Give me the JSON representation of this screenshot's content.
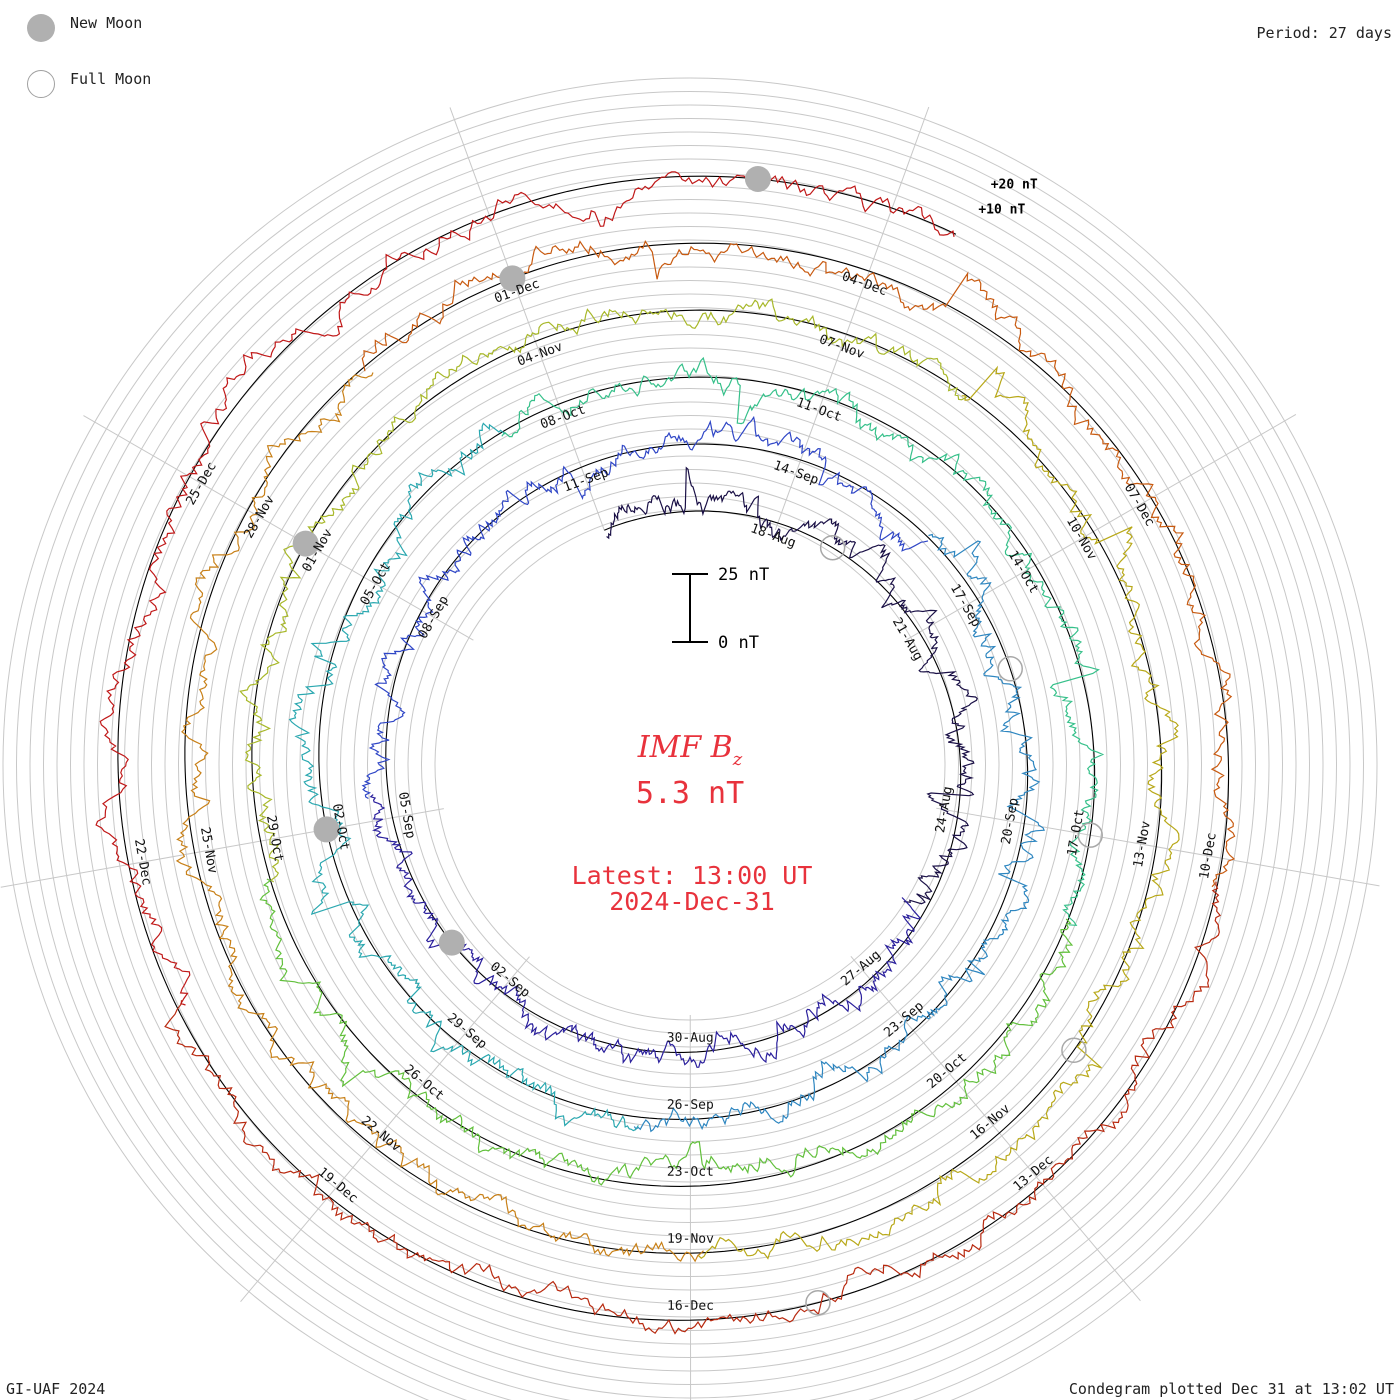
{
  "legend": {
    "new_moon_label": "New Moon",
    "full_moon_label": "Full Moon"
  },
  "period_label": "Period: 27 days",
  "footer_left": "GI-UAF 2024",
  "footer_right": "Condegram plotted Dec 31 at 13:02 UT",
  "center": {
    "quantity": "IMF B",
    "subscript": "z",
    "value": "5.3 nT",
    "latest_line1": "Latest: 13:00 UT",
    "latest_line2": "2024-Dec-31",
    "text_color": "#e8323c"
  },
  "chart_data": {
    "type": "line",
    "subtype": "spiral condegram",
    "quantity": "IMF Bz",
    "units": "nT",
    "period_days": 27,
    "scale_bar": {
      "top_label": "25 nT",
      "bottom_label": "0 nT",
      "span_nT": 25
    },
    "ring_reference_labels": [
      "+20 nT",
      "+10 nT"
    ],
    "latest_value_nT": 5.3,
    "latest_time": "2024-Dec-31 13:00 UT",
    "rotations": [
      {
        "start": "2024-08-15",
        "color": "#1a1046"
      },
      {
        "start": "2024-09-11",
        "color": "#2a1f9c"
      },
      {
        "start": "2024-10-08",
        "color": "#2f46c6"
      },
      {
        "start": "2024-11-04",
        "color": "#2ba8b0"
      },
      {
        "start": "2024-12-01",
        "color": "#62c03c"
      },
      {
        "start": "2024-12-28",
        "color": "#b8a818"
      }
    ],
    "spiral_color_sequence": [
      "#1a1046",
      "#2a1f9c",
      "#2f46c6",
      "#2e86c0",
      "#2ba8b0",
      "#36c08a",
      "#62c03c",
      "#a8b82a",
      "#b8a818",
      "#c88018",
      "#c85a10",
      "#b82a10",
      "#c01818"
    ],
    "date_labels": [
      {
        "text": "18-Aug",
        "day": 3
      },
      {
        "text": "21-Aug",
        "day": 6
      },
      {
        "text": "24-Aug",
        "day": 9
      },
      {
        "text": "27-Aug",
        "day": 12
      },
      {
        "text": "30-Aug",
        "day": 15
      },
      {
        "text": "02-Sep",
        "day": 18
      },
      {
        "text": "05-Sep",
        "day": 21
      },
      {
        "text": "08-Sep",
        "day": 24
      },
      {
        "text": "11-Sep",
        "day": 27
      },
      {
        "text": "14-Sep",
        "day": 30
      },
      {
        "text": "17-Sep",
        "day": 33
      },
      {
        "text": "20-Sep",
        "day": 36
      },
      {
        "text": "23-Sep",
        "day": 39
      },
      {
        "text": "26-Sep",
        "day": 42
      },
      {
        "text": "29-Sep",
        "day": 45
      },
      {
        "text": "02-Oct",
        "day": 48
      },
      {
        "text": "05-Oct",
        "day": 51
      },
      {
        "text": "08-Oct",
        "day": 54
      },
      {
        "text": "11-Oct",
        "day": 57
      },
      {
        "text": "14-Oct",
        "day": 60
      },
      {
        "text": "17-Oct",
        "day": 63
      },
      {
        "text": "20-Oct",
        "day": 66
      },
      {
        "text": "23-Oct",
        "day": 69
      },
      {
        "text": "26-Oct",
        "day": 72
      },
      {
        "text": "29-Oct",
        "day": 75
      },
      {
        "text": "01-Nov",
        "day": 78
      },
      {
        "text": "04-Nov",
        "day": 81
      },
      {
        "text": "07-Nov",
        "day": 84
      },
      {
        "text": "10-Nov",
        "day": 87
      },
      {
        "text": "13-Nov",
        "day": 90
      },
      {
        "text": "16-Nov",
        "day": 93
      },
      {
        "text": "19-Nov",
        "day": 96
      },
      {
        "text": "22-Nov",
        "day": 99
      },
      {
        "text": "25-Nov",
        "day": 102
      },
      {
        "text": "28-Nov",
        "day": 105
      },
      {
        "text": "01-Dec",
        "day": 108
      },
      {
        "text": "04-Dec",
        "day": 111
      },
      {
        "text": "07-Dec",
        "day": 114
      },
      {
        "text": "10-Dec",
        "day": 117
      },
      {
        "text": "13-Dec",
        "day": 120
      },
      {
        "text": "16-Dec",
        "day": 123
      },
      {
        "text": "19-Dec",
        "day": 126
      },
      {
        "text": "22-Dec",
        "day": 129
      },
      {
        "text": "25-Dec",
        "day": 132
      }
    ],
    "new_moons": [
      "2024-09-03",
      "2024-10-02",
      "2024-11-01",
      "2024-12-01",
      "2024-12-30"
    ],
    "full_moons": [
      "2024-08-19",
      "2024-09-18",
      "2024-10-17",
      "2024-11-15",
      "2024-12-15"
    ]
  }
}
